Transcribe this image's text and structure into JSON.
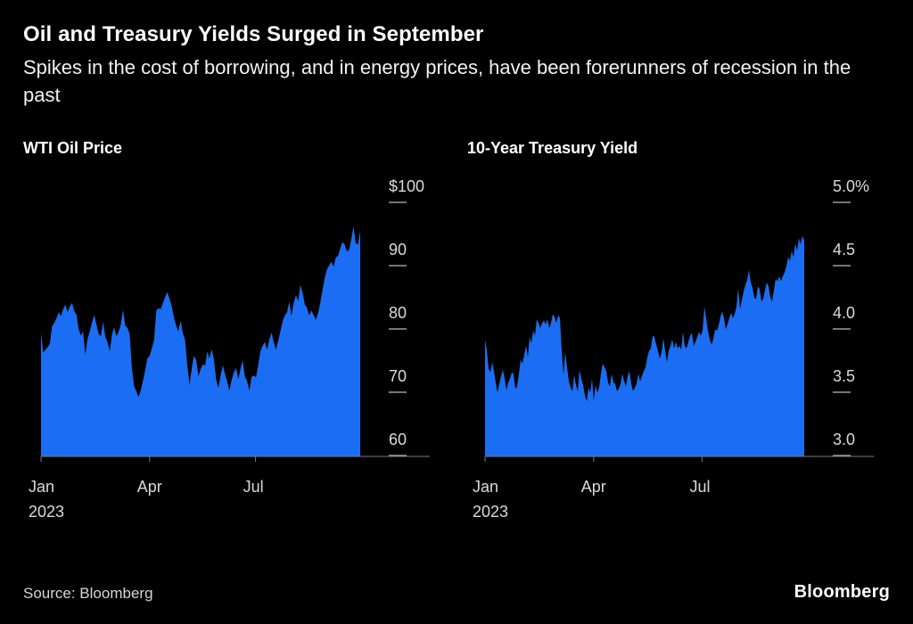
{
  "header": {
    "title": "Oil and Treasury Yields Surged in September",
    "subtitle": "Spikes in the cost of borrowing, and in energy prices, have been forerunners of recession in the past"
  },
  "footer": {
    "source": "Source: Bloomberg",
    "brand": "Bloomberg"
  },
  "colors": {
    "background": "#000000",
    "area": "#1b6ef3",
    "baseline": "#7a7a7a",
    "tick_dash": "#9a9a9a",
    "axis_text": "#dadada"
  },
  "chart_data": [
    {
      "type": "area",
      "name": "wti-oil-price",
      "title": "WTI Oil Price",
      "yticks": [
        "$100",
        "90",
        "80",
        "70",
        "60"
      ],
      "ytick_values": [
        100,
        90,
        80,
        70,
        60
      ],
      "ylim": [
        57,
        100
      ],
      "grid": false,
      "legend": "none",
      "xticks": [
        {
          "label": [
            "Jan",
            "2023"
          ],
          "frac": 0.0
        },
        {
          "label": [
            "Apr"
          ],
          "frac": 0.34
        },
        {
          "label": [
            "Jul"
          ],
          "frac": 0.672
        }
      ],
      "values": [
        76.9,
        73.7,
        74.2,
        74.6,
        75.1,
        77.9,
        78.4,
        79.2,
        80.1,
        79.5,
        80.6,
        81.3,
        80.1,
        81.0,
        81.6,
        80.3,
        79.7,
        77.4,
        76.4,
        77.1,
        73.4,
        75.9,
        77.1,
        78.5,
        79.7,
        78.1,
        76.7,
        76.3,
        78.6,
        76.2,
        75.4,
        73.9,
        76.6,
        77.7,
        76.3,
        77.0,
        78.2,
        80.5,
        78.0,
        77.6,
        76.7,
        71.3,
        68.4,
        67.6,
        66.7,
        67.8,
        69.3,
        70.9,
        72.8,
        73.2,
        74.4,
        75.7,
        80.4,
        80.7,
        80.6,
        81.5,
        82.5,
        83.3,
        82.2,
        81.0,
        79.2,
        77.9,
        77.1,
        78.8,
        76.8,
        75.7,
        71.7,
        68.6,
        71.3,
        73.2,
        72.6,
        70.0,
        71.1,
        71.9,
        71.6,
        73.9,
        72.8,
        74.3,
        72.7,
        69.5,
        68.1,
        70.1,
        71.7,
        70.4,
        69.2,
        67.7,
        69.4,
        70.6,
        71.3,
        69.5,
        71.2,
        72.5,
        69.9,
        69.2,
        67.7,
        69.9,
        70.1,
        69.8,
        71.8,
        73.9,
        74.8,
        75.4,
        74.2,
        75.8,
        76.9,
        75.4,
        74.2,
        75.6,
        77.1,
        78.7,
        79.6,
        80.1,
        81.8,
        79.5,
        81.6,
        82.8,
        81.9,
        84.4,
        83.2,
        81.4,
        80.8,
        79.6,
        80.4,
        79.6,
        78.9,
        80.0,
        81.6,
        83.6,
        85.5,
        86.9,
        87.5,
        88.1,
        87.3,
        88.8,
        89.0,
        90.2,
        91.2,
        90.8,
        89.7,
        90.0,
        91.7,
        93.7,
        91.0,
        90.8,
        93.0
      ]
    },
    {
      "type": "area",
      "name": "ten-year-treasury-yield",
      "title": "10-Year Treasury Yield",
      "yticks": [
        "5.0%",
        "4.5",
        "4.0",
        "3.5",
        "3.0"
      ],
      "ytick_values": [
        5.0,
        4.5,
        4.0,
        3.5,
        3.0
      ],
      "ylim": [
        2.87,
        5.0
      ],
      "grid": false,
      "legend": "none",
      "xticks": [
        {
          "label": [
            "Jan",
            "2023"
          ],
          "frac": 0.0
        },
        {
          "label": [
            "Apr"
          ],
          "frac": 0.34
        },
        {
          "label": [
            "Jul"
          ],
          "frac": 0.68
        }
      ],
      "values": [
        3.79,
        3.71,
        3.56,
        3.53,
        3.61,
        3.54,
        3.45,
        3.37,
        3.44,
        3.5,
        3.55,
        3.48,
        3.39,
        3.45,
        3.48,
        3.53,
        3.52,
        3.4,
        3.42,
        3.52,
        3.63,
        3.6,
        3.67,
        3.74,
        3.65,
        3.81,
        3.76,
        3.86,
        3.82,
        3.95,
        3.92,
        3.88,
        3.92,
        3.94,
        3.91,
        3.95,
        3.88,
        3.92,
        3.99,
        3.97,
        3.92,
        3.98,
        3.96,
        3.7,
        3.51,
        3.69,
        3.57,
        3.46,
        3.41,
        3.38,
        3.51,
        3.43,
        3.38,
        3.55,
        3.48,
        3.43,
        3.35,
        3.3,
        3.41,
        3.37,
        3.48,
        3.31,
        3.43,
        3.37,
        3.41,
        3.52,
        3.6,
        3.57,
        3.54,
        3.45,
        3.42,
        3.52,
        3.45,
        3.44,
        3.38,
        3.4,
        3.44,
        3.52,
        3.46,
        3.42,
        3.5,
        3.54,
        3.44,
        3.38,
        3.41,
        3.44,
        3.52,
        3.46,
        3.5,
        3.54,
        3.57,
        3.65,
        3.7,
        3.72,
        3.82,
        3.81,
        3.75,
        3.7,
        3.64,
        3.69,
        3.8,
        3.7,
        3.61,
        3.7,
        3.74,
        3.79,
        3.72,
        3.77,
        3.72,
        3.74,
        3.71,
        3.85,
        3.74,
        3.72,
        3.77,
        3.82,
        3.84,
        3.74,
        3.77,
        3.81,
        3.85,
        3.82,
        3.86,
        4.05,
        3.96,
        3.86,
        3.79,
        3.75,
        3.79,
        3.87,
        3.86,
        3.9,
        3.97,
        4.01,
        3.96,
        3.87,
        3.91,
        3.96,
        4.0,
        3.96,
        3.99,
        4.05,
        4.19,
        4.03,
        4.1,
        4.17,
        4.22,
        4.26,
        4.34,
        4.24,
        4.2,
        4.12,
        4.11,
        4.21,
        4.19,
        4.09,
        4.11,
        4.18,
        4.24,
        4.21,
        4.12,
        4.09,
        4.18,
        4.27,
        4.25,
        4.29,
        4.25,
        4.29,
        4.32,
        4.37,
        4.44,
        4.41,
        4.49,
        4.44,
        4.55,
        4.49,
        4.59,
        4.54,
        4.61,
        4.57
      ]
    }
  ]
}
